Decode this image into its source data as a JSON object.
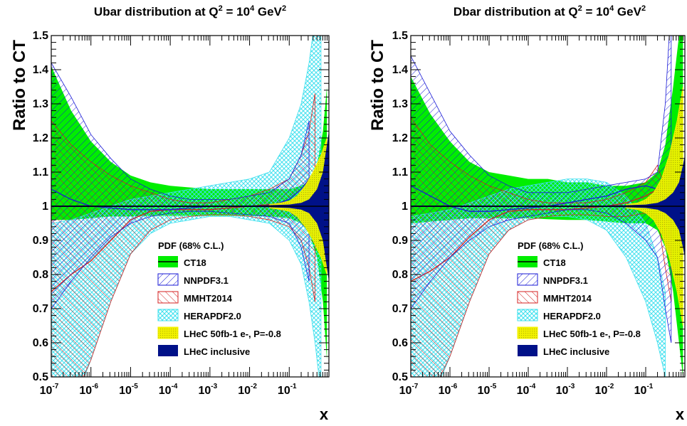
{
  "chart_data": [
    {
      "type": "line",
      "title": "Ubar distribution at Q",
      "title_tail": [
        "2",
        " = 10",
        "4",
        " GeV",
        "2"
      ],
      "ylabel": "Ratio to CT",
      "xlabel": "x",
      "xscale": "log",
      "xlim": [
        1e-07,
        1
      ],
      "ylim": [
        0.5,
        1.5
      ],
      "yticks": [
        "0.5",
        "0.6",
        "0.7",
        "0.8",
        "0.9",
        "1",
        "1.1",
        "1.2",
        "1.3",
        "1.4",
        "1.5"
      ],
      "xticks": [
        {
          "base": "10",
          "exp": "-7"
        },
        {
          "base": "10",
          "exp": "-6"
        },
        {
          "base": "10",
          "exp": "-5"
        },
        {
          "base": "10",
          "exp": "-4"
        },
        {
          "base": "10",
          "exp": "-3"
        },
        {
          "base": "10",
          "exp": "-2"
        },
        {
          "base": "10",
          "exp": "-1"
        }
      ],
      "legend_title": "PDF (68% C.L.)",
      "legend_position": "bottom-center",
      "series": [
        {
          "name": "CT18",
          "color": "#00ee00",
          "style": "solid-fill",
          "x": [
            -7,
            -6.5,
            -6,
            -5.5,
            -5,
            -4.5,
            -4,
            -3.5,
            -3,
            -2.5,
            -2,
            -1.5,
            -1,
            -0.7,
            -0.5,
            -0.3,
            -0.15,
            -0.05
          ],
          "upper": [
            1.41,
            1.28,
            1.19,
            1.13,
            1.09,
            1.07,
            1.06,
            1.055,
            1.05,
            1.05,
            1.05,
            1.05,
            1.05,
            1.06,
            1.07,
            1.12,
            1.22,
            1.35
          ],
          "lower": [
            0.96,
            0.96,
            0.965,
            0.97,
            0.97,
            0.972,
            0.972,
            0.972,
            0.972,
            0.972,
            0.972,
            0.97,
            0.965,
            0.95,
            0.92,
            0.85,
            0.72,
            0.55
          ]
        },
        {
          "name": "NNPDF3.1",
          "color": "#1a1ad6",
          "style": "hatch-blue",
          "x": [
            -7,
            -6.5,
            -6,
            -5.5,
            -5,
            -4.5,
            -4,
            -3.5,
            -3,
            -2.5,
            -2,
            -1.5,
            -1,
            -0.7,
            -0.5
          ],
          "upper": [
            1.42,
            1.32,
            1.21,
            1.14,
            1.08,
            1.05,
            1.03,
            1.02,
            1.02,
            1.02,
            1.03,
            1.04,
            1.08,
            1.15,
            1.25
          ],
          "lower": [
            0.7,
            0.78,
            0.85,
            0.91,
            0.95,
            0.97,
            0.98,
            0.985,
            0.985,
            0.98,
            0.975,
            0.97,
            0.95,
            0.88,
            0.78
          ],
          "central": [
            1.05,
            1.02,
            1.0,
            0.995,
            0.99,
            0.99,
            0.99,
            0.995,
            1.0,
            1.0,
            1.0,
            1.0,
            1.02,
            1.05,
            1.08
          ]
        },
        {
          "name": "MMHT2014",
          "color": "#d42020",
          "style": "hatch-red",
          "x": [
            -7,
            -6.5,
            -6,
            -5.5,
            -5,
            -4.5,
            -4,
            -3.5,
            -3,
            -2.5,
            -2,
            -1.5,
            -1,
            -0.7,
            -0.5,
            -0.35
          ],
          "upper": [
            1.25,
            1.18,
            1.13,
            1.09,
            1.06,
            1.04,
            1.02,
            1.01,
            1.01,
            1.02,
            1.03,
            1.05,
            1.08,
            1.15,
            1.22,
            1.33
          ],
          "lower": [
            0.3,
            0.42,
            0.55,
            0.72,
            0.86,
            0.93,
            0.96,
            0.97,
            0.975,
            0.975,
            0.97,
            0.96,
            0.94,
            0.9,
            0.82,
            0.72
          ],
          "central": [
            0.75,
            0.8,
            0.84,
            0.9,
            0.96,
            0.985,
            0.99,
            0.99,
            0.99,
            0.995,
            1.0,
            1.005,
            1.01,
            1.03,
            1.04,
            1.05
          ]
        },
        {
          "name": "HERAPDF2.0",
          "color": "#3ee0ee",
          "style": "hatch-cyan",
          "x": [
            -7,
            -6.5,
            -6,
            -5.5,
            -5,
            -4.5,
            -4,
            -3.5,
            -3,
            -2.5,
            -2,
            -1.5,
            -1,
            -0.7,
            -0.5,
            -0.35,
            -0.2
          ],
          "upper": [
            0.95,
            0.96,
            0.98,
            1.0,
            1.02,
            1.03,
            1.04,
            1.05,
            1.06,
            1.07,
            1.08,
            1.1,
            1.2,
            1.3,
            1.42,
            1.55,
            1.8
          ],
          "lower": [
            0.3,
            0.4,
            0.55,
            0.72,
            0.86,
            0.92,
            0.95,
            0.96,
            0.97,
            0.97,
            0.96,
            0.95,
            0.9,
            0.83,
            0.72,
            0.6,
            0.45
          ]
        },
        {
          "name": "LHeC 50fb-1 e-, P=-0.8",
          "color": "#f2f200",
          "style": "dots-yellow",
          "x": [
            -1.5,
            -1.2,
            -1,
            -0.8,
            -0.6,
            -0.4,
            -0.2,
            -0.05
          ],
          "upper": [
            1.005,
            1.01,
            1.015,
            1.03,
            1.06,
            1.1,
            1.15,
            1.2
          ],
          "lower": [
            0.995,
            0.99,
            0.985,
            0.97,
            0.94,
            0.9,
            0.85,
            0.8
          ]
        },
        {
          "name": "LHeC inclusive",
          "color": "#001188",
          "style": "solid-fill",
          "x": [
            -7,
            -6,
            -5,
            -4,
            -3,
            -2,
            -1.5,
            -1,
            -0.7,
            -0.5,
            -0.3,
            -0.15,
            -0.05,
            0
          ],
          "upper": [
            1.002,
            1.002,
            1.002,
            1.002,
            1.002,
            1.002,
            1.003,
            1.005,
            1.01,
            1.02,
            1.05,
            1.1,
            1.18,
            1.22
          ],
          "lower": [
            0.998,
            0.998,
            0.998,
            0.998,
            0.998,
            0.998,
            0.997,
            0.995,
            0.99,
            0.98,
            0.95,
            0.9,
            0.82,
            0.78
          ]
        }
      ]
    },
    {
      "type": "line",
      "title": "Dbar distribution at Q",
      "title_tail": [
        "2",
        " = 10",
        "4",
        " GeV",
        "2"
      ],
      "ylabel": "Ratio to CT",
      "xlabel": "x",
      "xscale": "log",
      "xlim": [
        1e-07,
        1
      ],
      "ylim": [
        0.5,
        1.5
      ],
      "yticks": [
        "0.5",
        "0.6",
        "0.7",
        "0.8",
        "0.9",
        "1",
        "1.1",
        "1.2",
        "1.3",
        "1.4",
        "1.5"
      ],
      "xticks": [
        {
          "base": "10",
          "exp": "-7"
        },
        {
          "base": "10",
          "exp": "-6"
        },
        {
          "base": "10",
          "exp": "-5"
        },
        {
          "base": "10",
          "exp": "-4"
        },
        {
          "base": "10",
          "exp": "-3"
        },
        {
          "base": "10",
          "exp": "-2"
        },
        {
          "base": "10",
          "exp": "-1"
        }
      ],
      "legend_title": "PDF (68% C.L.)",
      "legend_position": "bottom-center",
      "series": [
        {
          "name": "CT18",
          "color": "#00ee00",
          "style": "solid-fill",
          "x": [
            -7,
            -6.5,
            -6,
            -5.5,
            -5,
            -4.5,
            -4,
            -3.5,
            -3,
            -2.5,
            -2,
            -1.5,
            -1,
            -0.7,
            -0.5,
            -0.3,
            -0.15,
            -0.05
          ],
          "upper": [
            1.38,
            1.27,
            1.19,
            1.13,
            1.1,
            1.09,
            1.08,
            1.08,
            1.07,
            1.07,
            1.06,
            1.06,
            1.07,
            1.1,
            1.18,
            1.35,
            1.5,
            1.6
          ],
          "lower": [
            0.95,
            0.955,
            0.96,
            0.965,
            0.965,
            0.965,
            0.965,
            0.962,
            0.96,
            0.96,
            0.955,
            0.95,
            0.95,
            0.93,
            0.88,
            0.75,
            0.6,
            0.5
          ]
        },
        {
          "name": "NNPDF3.1",
          "color": "#1a1ad6",
          "style": "hatch-blue",
          "x": [
            -7,
            -6.5,
            -6,
            -5.5,
            -5,
            -4.5,
            -4,
            -3.5,
            -3,
            -2.5,
            -2,
            -1.5,
            -1,
            -0.7,
            -0.5,
            -0.35
          ],
          "upper": [
            1.44,
            1.33,
            1.22,
            1.15,
            1.09,
            1.06,
            1.04,
            1.04,
            1.04,
            1.05,
            1.06,
            1.07,
            1.08,
            1.1,
            1.3,
            1.6
          ],
          "lower": [
            0.7,
            0.78,
            0.85,
            0.9,
            0.94,
            0.96,
            0.97,
            0.98,
            0.99,
            0.99,
            0.98,
            0.95,
            0.9,
            0.85,
            0.7,
            0.6
          ],
          "central": [
            1.06,
            1.03,
            1.0,
            0.985,
            0.985,
            0.99,
            0.995,
            1.0,
            1.01,
            1.02,
            1.03,
            1.05,
            1.06,
            1.05,
            1.02,
            0.95
          ]
        },
        {
          "name": "MMHT2014",
          "color": "#d42020",
          "style": "hatch-red",
          "x": [
            -7,
            -6.5,
            -6,
            -5.5,
            -5,
            -4.5,
            -4,
            -3.5,
            -3,
            -2.5,
            -2,
            -1.5,
            -1,
            -0.7,
            -0.5,
            -0.35
          ],
          "upper": [
            1.26,
            1.18,
            1.13,
            1.09,
            1.06,
            1.04,
            1.02,
            1.01,
            1.01,
            1.01,
            1.02,
            1.04,
            1.07,
            1.12,
            1.05,
            0.95
          ],
          "lower": [
            0.32,
            0.44,
            0.56,
            0.72,
            0.86,
            0.93,
            0.96,
            0.97,
            0.975,
            0.975,
            0.97,
            0.97,
            0.98,
            0.97,
            0.82,
            0.72
          ],
          "central": [
            0.78,
            0.81,
            0.85,
            0.91,
            0.96,
            0.985,
            0.99,
            0.99,
            0.99,
            0.995,
            1.0,
            1.01,
            1.03,
            1.05,
            0.93,
            0.85
          ]
        },
        {
          "name": "HERAPDF2.0",
          "color": "#3ee0ee",
          "style": "hatch-cyan",
          "x": [
            -7,
            -6.5,
            -6,
            -5.5,
            -5,
            -4.5,
            -4,
            -3.5,
            -3,
            -2.5,
            -2,
            -1.5,
            -1,
            -0.7,
            -0.5
          ],
          "upper": [
            0.97,
            0.98,
            0.99,
            1.01,
            1.03,
            1.05,
            1.06,
            1.07,
            1.08,
            1.08,
            1.07,
            1.03,
            0.95,
            0.85,
            0.75
          ],
          "lower": [
            0.32,
            0.42,
            0.56,
            0.72,
            0.86,
            0.93,
            0.96,
            0.97,
            0.97,
            0.96,
            0.93,
            0.85,
            0.72,
            0.6,
            0.5
          ]
        },
        {
          "name": "LHeC 50fb-1 e-, P=-0.8",
          "color": "#f2f200",
          "style": "dots-yellow",
          "x": [
            -1.5,
            -1.2,
            -1,
            -0.8,
            -0.6,
            -0.4,
            -0.2,
            -0.05
          ],
          "upper": [
            1.005,
            1.01,
            1.02,
            1.04,
            1.08,
            1.15,
            1.25,
            1.35
          ],
          "lower": [
            0.995,
            0.99,
            0.98,
            0.96,
            0.92,
            0.85,
            0.75,
            0.65
          ]
        },
        {
          "name": "LHeC inclusive",
          "color": "#001188",
          "style": "solid-fill",
          "x": [
            -7,
            -6,
            -5,
            -4,
            -3,
            -2,
            -1.5,
            -1,
            -0.7,
            -0.5,
            -0.3,
            -0.15,
            -0.05,
            0
          ],
          "upper": [
            1.002,
            1.002,
            1.002,
            1.002,
            1.002,
            1.002,
            1.003,
            1.005,
            1.01,
            1.02,
            1.04,
            1.07,
            1.12,
            1.15
          ],
          "lower": [
            0.998,
            0.998,
            0.998,
            0.998,
            0.998,
            0.998,
            0.997,
            0.995,
            0.99,
            0.98,
            0.96,
            0.93,
            0.88,
            0.85
          ]
        }
      ]
    }
  ]
}
